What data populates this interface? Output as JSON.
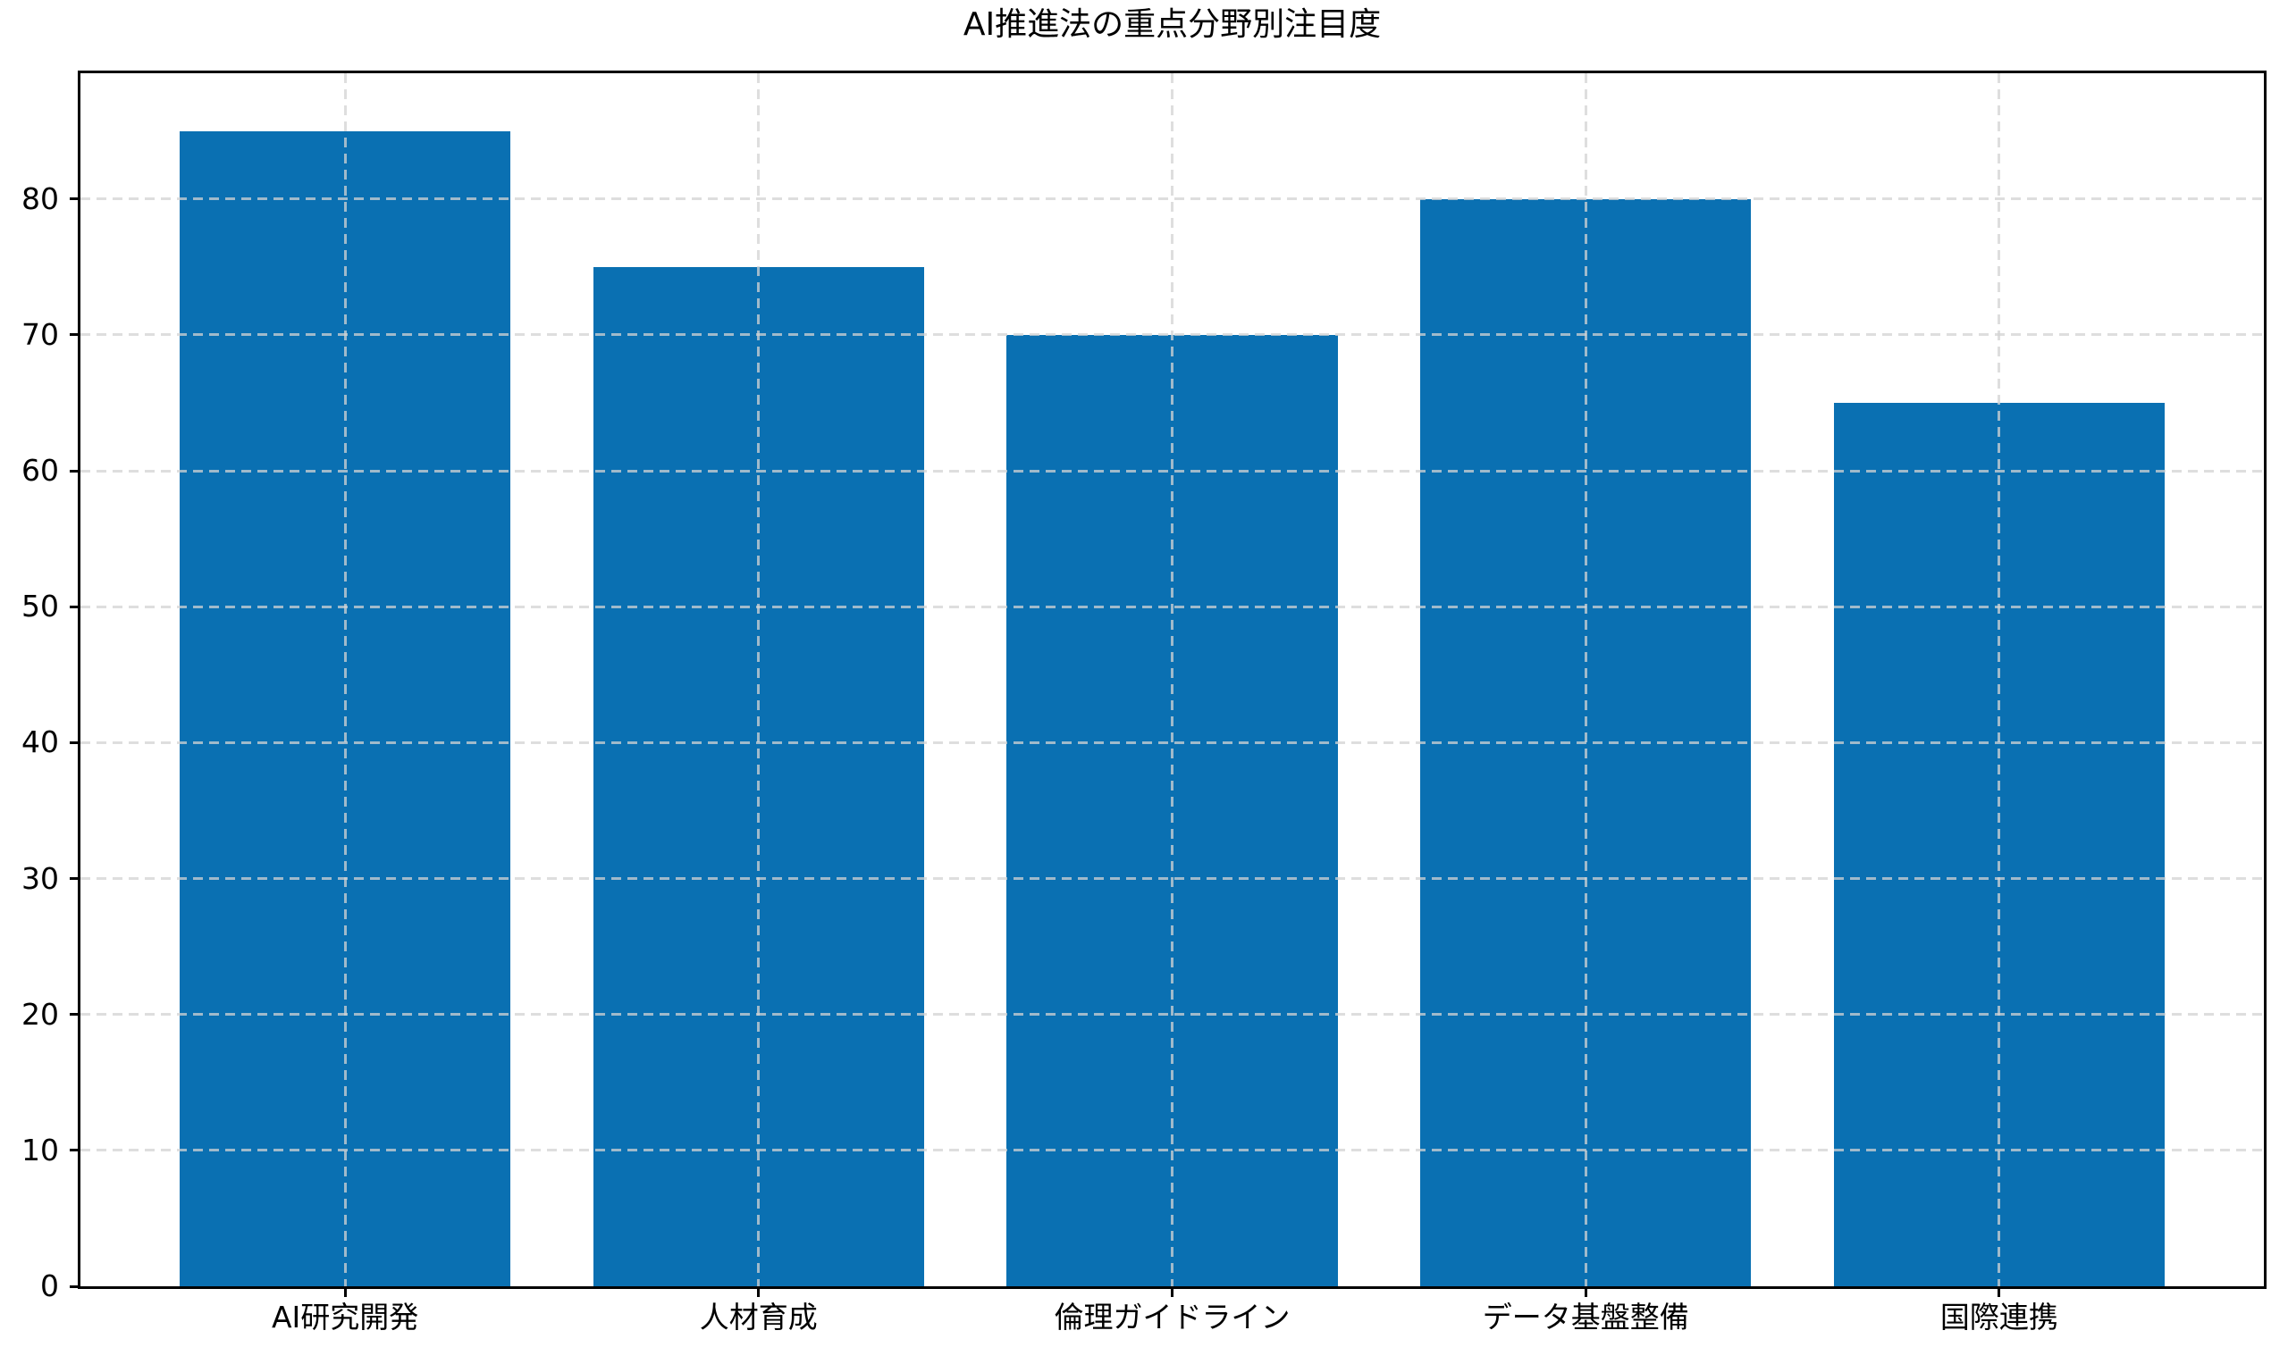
{
  "chart_data": {
    "type": "bar",
    "title": "AI推進法の重点分野別注目度",
    "categories": [
      "AI研究開発",
      "人材育成",
      "倫理ガイドライン",
      "データ基盤整備",
      "国際連携"
    ],
    "values": [
      85,
      75,
      70,
      80,
      65
    ],
    "xlabel": "",
    "ylabel": "",
    "ylim": [
      0,
      89.25
    ],
    "yticks": [
      0,
      10,
      20,
      30,
      40,
      50,
      60,
      70,
      80
    ],
    "bar_color": "#0a70b2",
    "grid": true,
    "grid_line_style": "dashed",
    "grid_color": "#d3d3d3",
    "axis_color": "#000000",
    "background_color": "#ffffff",
    "legend": null
  }
}
